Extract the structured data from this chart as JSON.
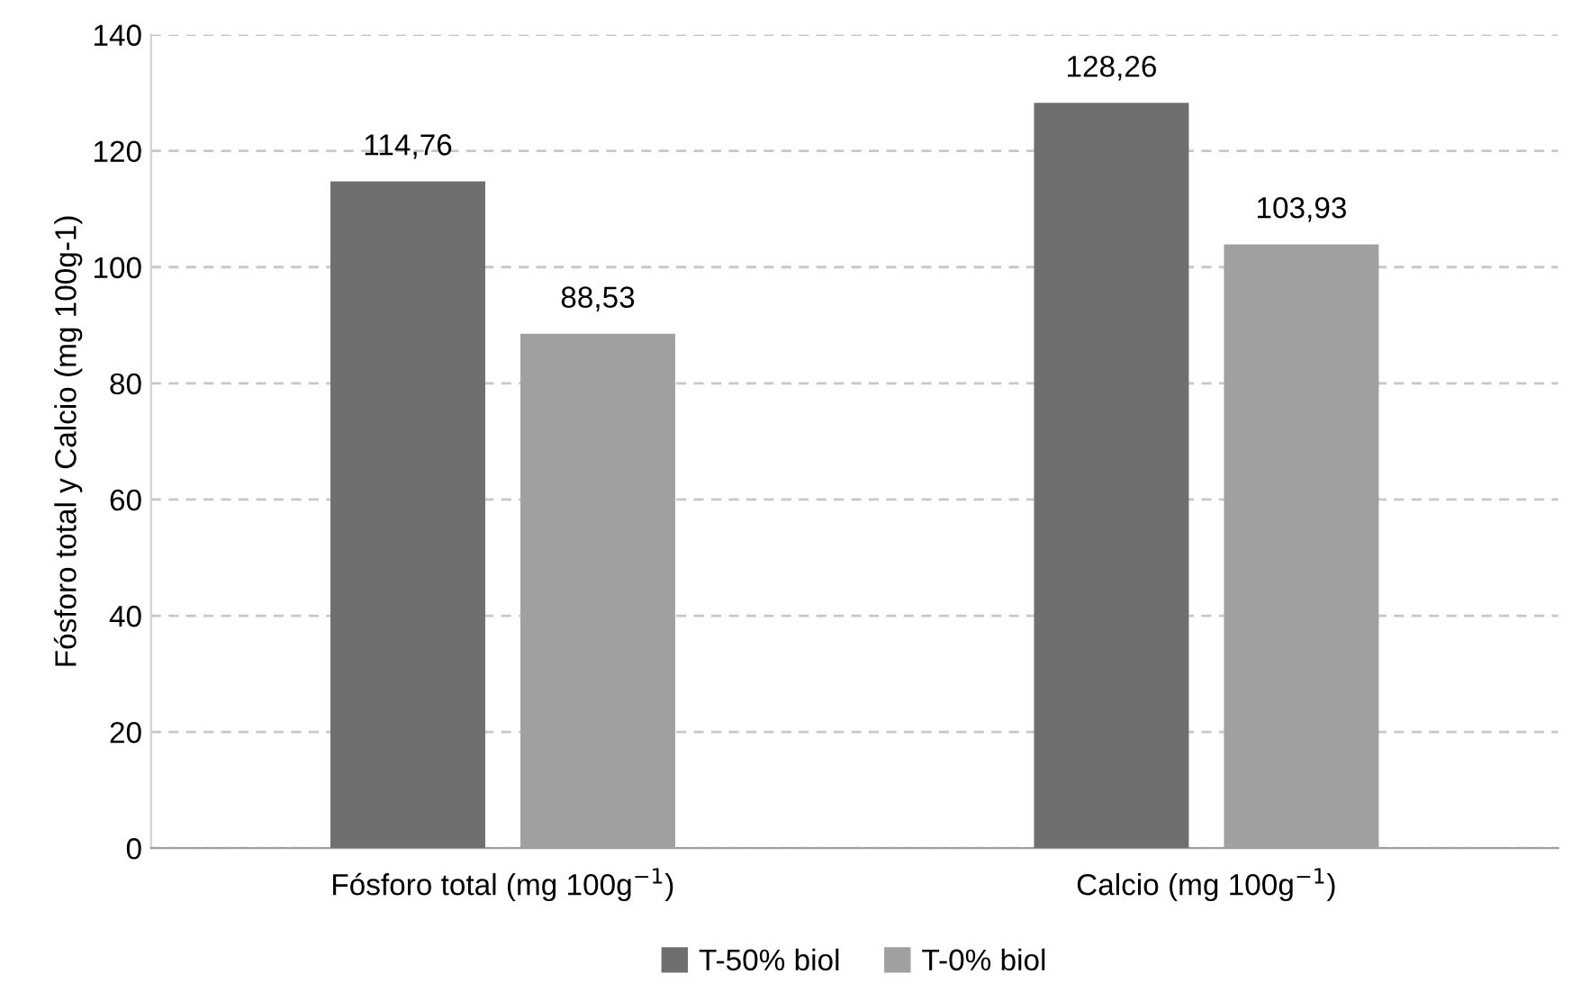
{
  "chart_data": {
    "type": "bar",
    "ylabel": "Fósforo total y Calcio (mg 100g-1)",
    "categories": [
      "Fósforo total (mg 100g$^{−1}$)",
      "Calcio (mg 100g$^{−1}$)"
    ],
    "series": [
      {
        "name": "T-50% biol",
        "color": "#6f6f6f",
        "values": [
          114.76,
          128.26
        ],
        "value_labels": [
          "114,76",
          "128,26"
        ]
      },
      {
        "name": "T-0% biol",
        "color": "#a0a0a0",
        "values": [
          88.53,
          103.93
        ],
        "value_labels": [
          "88,53",
          "103,93"
        ]
      }
    ],
    "ylim": [
      0,
      140
    ],
    "yticks": [
      0,
      20,
      40,
      60,
      80,
      100,
      120,
      140
    ],
    "grid": "y",
    "legend": "bottom"
  }
}
